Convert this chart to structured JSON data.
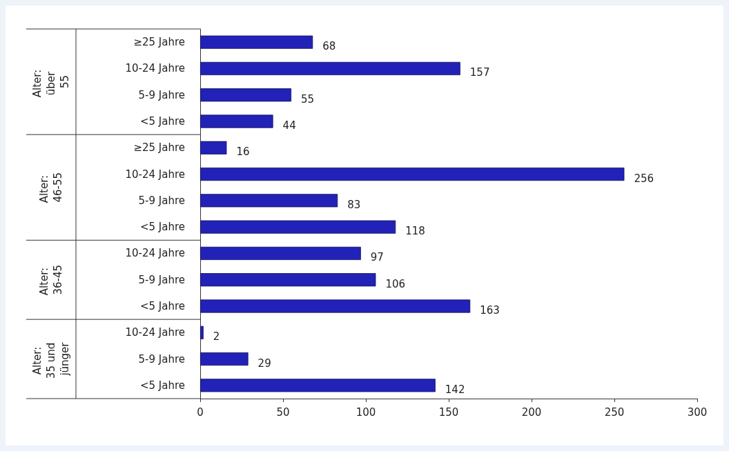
{
  "chart_data": {
    "type": "bar",
    "orientation": "horizontal",
    "categories": [
      "≥25 Jahre",
      "10-24 Jahre",
      "5-9 Jahre",
      "<5 Jahre",
      "≥25 Jahre",
      "10-24 Jahre",
      "5-9 Jahre",
      "<5 Jahre",
      "10-24 Jahre",
      "5-9 Jahre",
      "<5 Jahre",
      "10-24 Jahre",
      "5-9 Jahre",
      "<5 Jahre"
    ],
    "values": [
      68,
      157,
      55,
      44,
      16,
      256,
      83,
      118,
      97,
      106,
      163,
      2,
      29,
      142
    ],
    "color": "#2222b8",
    "xlim": [
      0,
      300
    ],
    "xticks": [
      0,
      50,
      100,
      150,
      200,
      250,
      300
    ],
    "grid": false,
    "data_labels": true,
    "annotations": [
      "Alter: über 55",
      "Alter: 46-55",
      "Alter: 36-45",
      "Alter: 35 und jünger"
    ]
  }
}
